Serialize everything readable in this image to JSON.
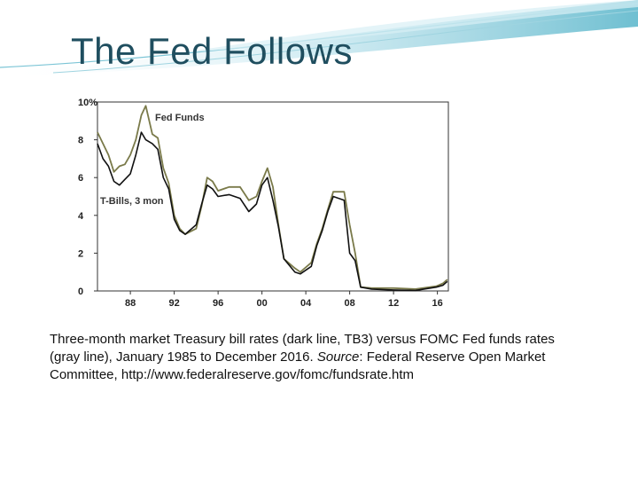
{
  "slide": {
    "title": "The Fed Follows",
    "caption_1": "Three-month market Treasury bill rates (dark line, TB3) versus FOMC Fed funds rates (gray line), January 1985 to December 2016. ",
    "caption_source_label": "Source",
    "caption_2": ": Federal Reserve Open Market Committee, http://www.federalreserve.gov/fomc/fundsrate.htm"
  },
  "colors": {
    "fed_funds": "#7a7a4a",
    "tbills": "#111111",
    "title": "#1f4e5f",
    "deco": "#5fb8cc"
  },
  "chart_data": {
    "type": "line",
    "x_tick_labels": [
      "88",
      "92",
      "96",
      "00",
      "04",
      "08",
      "12",
      "16"
    ],
    "x_tick_years": [
      1988,
      1992,
      1996,
      2000,
      2004,
      2008,
      2012,
      2016
    ],
    "y_tick_labels": [
      "10%",
      "8",
      "6",
      "4",
      "2",
      "0"
    ],
    "y_tick_values": [
      10,
      8,
      6,
      4,
      2,
      0
    ],
    "xlim": [
      1985,
      2017
    ],
    "ylim": [
      0,
      10
    ],
    "series": [
      {
        "name": "Fed Funds",
        "key": "fed_funds",
        "x": [
          1985,
          1985.5,
          1986,
          1986.5,
          1987,
          1987.5,
          1988,
          1988.5,
          1989,
          1989.4,
          1990,
          1990.5,
          1991,
          1991.5,
          1992,
          1992.5,
          1993,
          1994,
          1994.5,
          1995,
          1995.5,
          1996,
          1997,
          1998,
          1998.8,
          1999.5,
          2000,
          2000.5,
          2001,
          2001.5,
          2002,
          2003,
          2003.5,
          2004.5,
          2005,
          2005.5,
          2006,
          2006.5,
          2007.5,
          2008,
          2008.5,
          2009,
          2010,
          2012,
          2014,
          2015.9,
          2016.5,
          2016.9
        ],
        "y": [
          8.4,
          7.8,
          7.2,
          6.3,
          6.6,
          6.7,
          7.2,
          8.0,
          9.3,
          9.8,
          8.3,
          8.1,
          6.5,
          5.7,
          4.0,
          3.3,
          3.0,
          3.3,
          4.5,
          6.0,
          5.8,
          5.3,
          5.5,
          5.5,
          4.8,
          5.0,
          5.8,
          6.5,
          5.5,
          3.5,
          1.7,
          1.2,
          1.0,
          1.5,
          2.5,
          3.3,
          4.3,
          5.25,
          5.25,
          3.5,
          2.0,
          0.2,
          0.15,
          0.15,
          0.1,
          0.25,
          0.4,
          0.6
        ]
      },
      {
        "name": "T-Bills, 3 mon",
        "key": "tbills",
        "x": [
          1985,
          1985.5,
          1986,
          1986.5,
          1987,
          1987.5,
          1988,
          1988.5,
          1989,
          1989.4,
          1990,
          1990.5,
          1991,
          1991.5,
          1992,
          1992.5,
          1993,
          1994,
          1994.5,
          1995,
          1995.5,
          1996,
          1997,
          1998,
          1998.8,
          1999.5,
          2000,
          2000.5,
          2001,
          2001.5,
          2002,
          2003,
          2003.5,
          2004.5,
          2005,
          2005.5,
          2006,
          2006.5,
          2007.5,
          2008,
          2008.5,
          2009,
          2010,
          2012,
          2014,
          2015.9,
          2016.5,
          2016.9
        ],
        "y": [
          7.8,
          7.0,
          6.6,
          5.8,
          5.6,
          5.9,
          6.2,
          7.2,
          8.4,
          8.0,
          7.8,
          7.5,
          6.0,
          5.4,
          3.8,
          3.2,
          3.0,
          3.5,
          4.6,
          5.6,
          5.4,
          5.0,
          5.1,
          4.9,
          4.2,
          4.6,
          5.6,
          6.0,
          4.8,
          3.4,
          1.7,
          1.0,
          0.9,
          1.3,
          2.4,
          3.2,
          4.2,
          5.0,
          4.8,
          2.0,
          1.6,
          0.2,
          0.1,
          0.05,
          0.03,
          0.2,
          0.3,
          0.5
        ]
      }
    ]
  }
}
